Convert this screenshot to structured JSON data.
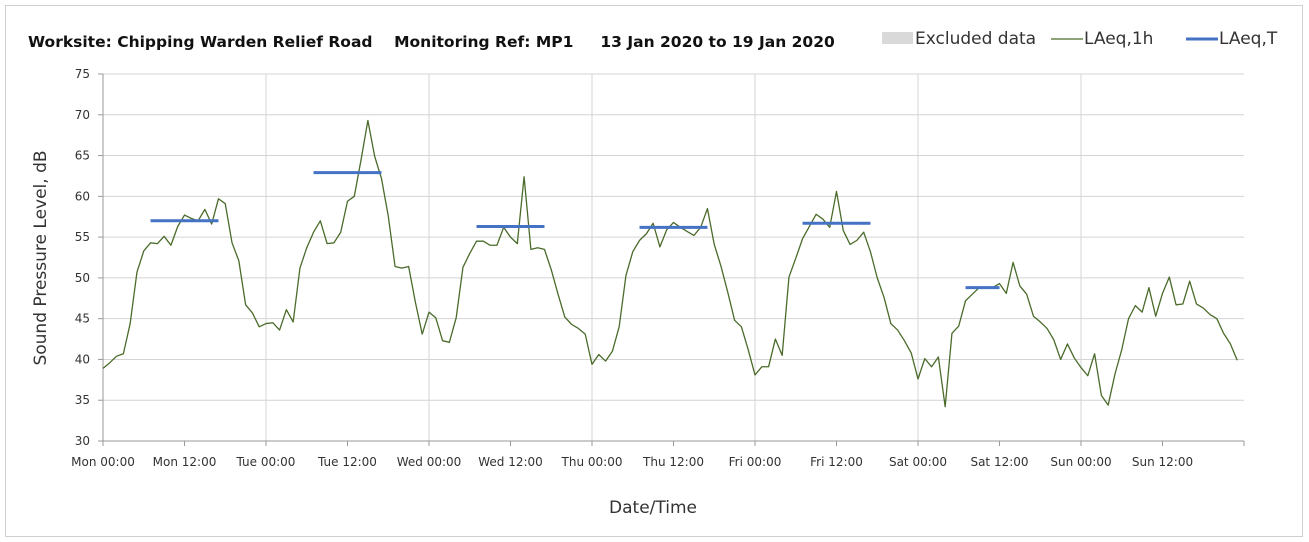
{
  "chart_data": {
    "type": "line",
    "title": "Worksite: Chipping Warden Relief Road    Monitoring Ref: MP1     13 Jan 2020 to 19 Jan 2020",
    "xlabel": "Date/Time",
    "ylabel": "Sound Pressure Level, dB",
    "ylim": [
      30,
      75
    ],
    "yticks": [
      30,
      35,
      40,
      45,
      50,
      55,
      60,
      65,
      70,
      75
    ],
    "xlim_hours": [
      0,
      168
    ],
    "x_tick_labels": [
      "Mon 00:00",
      "Mon 12:00",
      "Tue 00:00",
      "Tue 12:00",
      "Wed 00:00",
      "Wed 12:00",
      "Thu 00:00",
      "Thu 12:00",
      "Fri 00:00",
      "Fri 12:00",
      "Sat 00:00",
      "Sat 12:00",
      "Sun 00:00",
      "Sun 12:00"
    ],
    "grid": true,
    "legend_position": "top-right",
    "legend": [
      {
        "label": "Excluded data",
        "kind": "area",
        "color": "#d9d9d9"
      },
      {
        "label": "LAeq,1h",
        "kind": "line",
        "color": "#4a6b2a"
      },
      {
        "label": "LAeq,T",
        "kind": "line",
        "color": "#4472c4"
      }
    ],
    "series": [
      {
        "name": "LAeq,1h",
        "color": "#4a6b2a",
        "values": [
          38.9,
          39.6,
          40.4,
          40.7,
          44.4,
          50.7,
          53.3,
          54.3,
          54.2,
          55.1,
          54.0,
          56.3,
          57.7,
          57.3,
          57.0,
          58.4,
          56.6,
          59.7,
          59.1,
          54.3,
          52.1,
          46.7,
          45.7,
          44.0,
          44.4,
          44.5,
          43.6,
          46.1,
          44.6,
          51.2,
          53.7,
          55.6,
          57.0,
          54.2,
          54.3,
          55.6,
          59.4,
          60.0,
          64.5,
          69.3,
          64.9,
          62.2,
          57.6,
          51.4,
          51.2,
          51.4,
          47.0,
          43.1,
          45.8,
          45.1,
          42.3,
          42.1,
          45.1,
          51.3,
          53.0,
          54.5,
          54.5,
          54.0,
          54.0,
          56.2,
          55.0,
          54.2,
          62.4,
          53.5,
          53.7,
          53.5,
          51.0,
          48.0,
          45.2,
          44.3,
          43.8,
          43.1,
          39.4,
          40.6,
          39.8,
          41.0,
          44.0,
          50.3,
          53.2,
          54.6,
          55.4,
          56.7,
          53.8,
          55.9,
          56.8,
          56.2,
          55.7,
          55.2,
          56.2,
          58.5,
          54.1,
          51.4,
          48.2,
          44.8,
          44.0,
          41.2,
          38.1,
          39.1,
          39.1,
          42.5,
          40.5,
          50.1,
          52.4,
          54.8,
          56.3,
          57.8,
          57.2,
          56.2,
          60.6,
          55.8,
          54.1,
          54.6,
          55.6,
          53.2,
          50.0,
          47.6,
          44.4,
          43.6,
          42.3,
          40.8,
          37.6,
          40.1,
          39.1,
          40.3,
          34.2,
          43.2,
          44.1,
          47.2,
          48.0,
          48.8,
          48.8,
          48.8,
          49.3,
          48.1,
          51.9,
          49.0,
          48.0,
          45.3,
          44.6,
          43.8,
          42.4,
          40.0,
          41.9,
          40.2,
          39.0,
          38.0,
          40.7,
          35.6,
          34.4,
          38.2,
          41.2,
          45.0,
          46.6,
          45.8,
          48.8,
          45.3,
          48.1,
          50.1,
          46.7,
          46.8,
          49.6,
          46.8,
          46.3,
          45.5,
          45.0,
          43.2,
          41.9,
          39.9
        ]
      },
      {
        "name": "LAeq,T",
        "color": "#4472c4",
        "segments": [
          {
            "day": "Mon",
            "start_hour": 7,
            "end_hour": 17,
            "value": 57.0
          },
          {
            "day": "Tue",
            "start_hour": 31,
            "end_hour": 41,
            "value": 62.9
          },
          {
            "day": "Wed",
            "start_hour": 55,
            "end_hour": 65,
            "value": 56.3
          },
          {
            "day": "Thu",
            "start_hour": 79,
            "end_hour": 89,
            "value": 56.2
          },
          {
            "day": "Fri",
            "start_hour": 103,
            "end_hour": 113,
            "value": 56.7
          },
          {
            "day": "Sat",
            "start_hour": 127,
            "end_hour": 132,
            "value": 48.8
          }
        ]
      }
    ]
  }
}
